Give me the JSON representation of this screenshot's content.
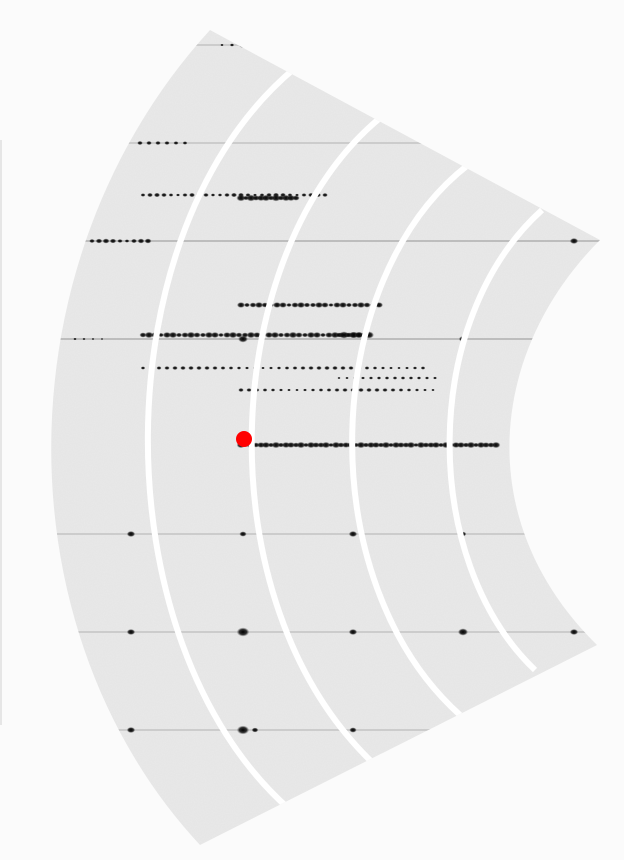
{
  "image": {
    "subject": "x-ray-diffraction-detector-pattern",
    "colors": {
      "page_background": "#fbfbfb",
      "detector_background": "#e9e9e9",
      "gap_ring_color": "#ffffff",
      "spot_color": "#111111",
      "marker_color": "#ff0000"
    },
    "layer_line_count": 7,
    "detector_gap_count": 4,
    "marker": {
      "shape": "circle",
      "description": "beam-center-marker"
    }
  }
}
